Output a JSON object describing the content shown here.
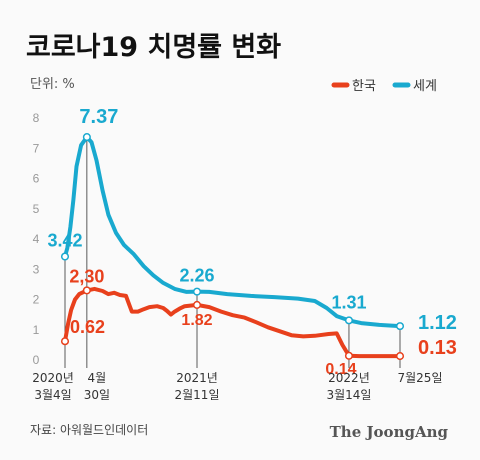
{
  "title": "코로나19 치명률 변화",
  "unit_label": "단위: %",
  "source": "자료: 아워월드인데이터",
  "brand": "The JoongAng",
  "chart_data": {
    "type": "line",
    "ylim": [
      0,
      8
    ],
    "yticks": [
      "0",
      "1",
      "2",
      "3",
      "4",
      "5",
      "6",
      "7",
      "8"
    ],
    "grid": false,
    "legend_position": "top-right",
    "colors": {
      "korea": "#e8401c",
      "world": "#19a9cf",
      "guide": "#333333"
    },
    "x_ticks": [
      {
        "label": [
          "2020년",
          "3월4일"
        ]
      },
      {
        "label": [
          "4월",
          "30일"
        ]
      },
      {
        "label": [
          "2021년",
          "2월11일"
        ]
      },
      {
        "label": [
          "2022년",
          "3월14일"
        ]
      },
      {
        "label": [
          "7월25일"
        ]
      }
    ],
    "x_dates": [
      "2020-03-04",
      "2020-04-30",
      "2021-02-11",
      "2022-03-14",
      "2022-07-25"
    ],
    "series": [
      {
        "name": "한국",
        "color": "#e8401c",
        "points": [
          [
            "2020-03-04",
            0.62
          ],
          [
            "2020-03-12",
            1.2
          ],
          [
            "2020-03-20",
            1.65
          ],
          [
            "2020-03-30",
            2.0
          ],
          [
            "2020-04-10",
            2.18
          ],
          [
            "2020-04-30",
            2.3
          ],
          [
            "2020-05-20",
            2.35
          ],
          [
            "2020-06-10",
            2.28
          ],
          [
            "2020-06-25",
            2.18
          ],
          [
            "2020-07-10",
            2.22
          ],
          [
            "2020-07-25",
            2.15
          ],
          [
            "2020-08-10",
            2.12
          ],
          [
            "2020-08-25",
            1.6
          ],
          [
            "2020-09-10",
            1.6
          ],
          [
            "2020-09-25",
            1.68
          ],
          [
            "2020-10-10",
            1.75
          ],
          [
            "2020-10-30",
            1.78
          ],
          [
            "2020-11-15",
            1.72
          ],
          [
            "2020-11-25",
            1.62
          ],
          [
            "2020-12-05",
            1.5
          ],
          [
            "2020-12-15",
            1.6
          ],
          [
            "2020-12-28",
            1.7
          ],
          [
            "2021-01-10",
            1.78
          ],
          [
            "2021-02-11",
            1.82
          ],
          [
            "2021-03-15",
            1.75
          ],
          [
            "2021-04-15",
            1.6
          ],
          [
            "2021-05-15",
            1.48
          ],
          [
            "2021-06-15",
            1.4
          ],
          [
            "2021-07-15",
            1.25
          ],
          [
            "2021-08-15",
            1.08
          ],
          [
            "2021-09-15",
            0.95
          ],
          [
            "2021-10-15",
            0.82
          ],
          [
            "2021-11-15",
            0.78
          ],
          [
            "2021-12-15",
            0.8
          ],
          [
            "2022-01-20",
            0.86
          ],
          [
            "2022-02-10",
            0.88
          ],
          [
            "2022-02-25",
            0.5
          ],
          [
            "2022-03-14",
            0.14
          ],
          [
            "2022-04-10",
            0.13
          ],
          [
            "2022-07-25",
            0.13
          ]
        ],
        "labels": [
          {
            "date": "2020-03-04",
            "value": 0.62,
            "text": "0.62"
          },
          {
            "date": "2020-04-30",
            "value": 2.3,
            "text": "2,30"
          },
          {
            "date": "2021-02-11",
            "value": 1.82,
            "text": "1.82"
          },
          {
            "date": "2022-03-14",
            "value": 0.14,
            "text": "0.14"
          },
          {
            "date": "2022-07-25",
            "value": 0.13,
            "text": "0.13"
          }
        ]
      },
      {
        "name": "세계",
        "color": "#19a9cf",
        "points": [
          [
            "2020-03-04",
            3.42
          ],
          [
            "2020-03-10",
            3.7
          ],
          [
            "2020-03-18",
            4.4
          ],
          [
            "2020-03-26",
            5.3
          ],
          [
            "2020-04-03",
            6.4
          ],
          [
            "2020-04-15",
            7.1
          ],
          [
            "2020-04-30",
            7.37
          ],
          [
            "2020-05-12",
            7.2
          ],
          [
            "2020-05-25",
            6.6
          ],
          [
            "2020-06-10",
            5.6
          ],
          [
            "2020-06-25",
            4.8
          ],
          [
            "2020-07-15",
            4.2
          ],
          [
            "2020-08-05",
            3.8
          ],
          [
            "2020-08-30",
            3.5
          ],
          [
            "2020-09-25",
            3.1
          ],
          [
            "2020-10-20",
            2.8
          ],
          [
            "2020-11-15",
            2.55
          ],
          [
            "2020-12-15",
            2.35
          ],
          [
            "2021-01-15",
            2.25
          ],
          [
            "2021-02-11",
            2.26
          ],
          [
            "2021-03-15",
            2.25
          ],
          [
            "2021-05-01",
            2.18
          ],
          [
            "2021-07-01",
            2.12
          ],
          [
            "2021-09-01",
            2.08
          ],
          [
            "2021-11-01",
            2.03
          ],
          [
            "2021-12-15",
            1.95
          ],
          [
            "2022-01-15",
            1.72
          ],
          [
            "2022-02-10",
            1.45
          ],
          [
            "2022-03-14",
            1.31
          ],
          [
            "2022-04-15",
            1.22
          ],
          [
            "2022-06-01",
            1.16
          ],
          [
            "2022-07-25",
            1.12
          ]
        ],
        "labels": [
          {
            "date": "2020-03-04",
            "value": 3.42,
            "text": "3.42"
          },
          {
            "date": "2020-04-30",
            "value": 7.37,
            "text": "7.37"
          },
          {
            "date": "2021-02-11",
            "value": 2.26,
            "text": "2.26"
          },
          {
            "date": "2022-03-14",
            "value": 1.31,
            "text": "1.31"
          },
          {
            "date": "2022-07-25",
            "value": 1.12,
            "text": "1.12"
          }
        ]
      }
    ]
  }
}
